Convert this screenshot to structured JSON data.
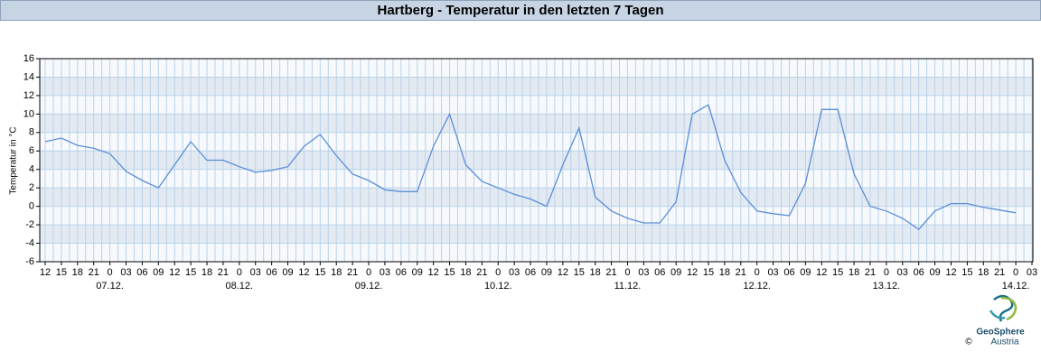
{
  "chart_data": {
    "type": "line",
    "title": "Hartberg - Temperatur in den letzten 7 Tagen",
    "y_label": "Temperatur in °C",
    "categories": [
      "12",
      "15",
      "18",
      "21",
      "0",
      "03",
      "06",
      "09",
      "12",
      "15",
      "18",
      "21",
      "0",
      "03",
      "06",
      "09",
      "12",
      "15",
      "18",
      "21",
      "0",
      "03",
      "06",
      "09",
      "12",
      "15",
      "18",
      "21",
      "0",
      "03",
      "06",
      "09",
      "12",
      "15",
      "18",
      "21",
      "0",
      "03",
      "06",
      "09",
      "12",
      "15",
      "18",
      "21",
      "0",
      "03",
      "06",
      "09",
      "12",
      "15",
      "18",
      "21",
      "0",
      "03",
      "06",
      "09",
      "12",
      "15",
      "18",
      "21",
      "0",
      "03"
    ],
    "dates": [
      "07.12.",
      "08.12.",
      "09.12.",
      "10.12.",
      "11.12.",
      "12.12.",
      "13.12.",
      "14.12."
    ],
    "values": [
      7.0,
      7.4,
      6.6,
      6.3,
      5.7,
      3.8,
      2.8,
      2.0,
      4.5,
      7.0,
      5.0,
      5.0,
      4.3,
      3.7,
      3.9,
      4.3,
      6.5,
      7.8,
      5.5,
      3.5,
      2.8,
      1.8,
      1.6,
      1.6,
      6.5,
      10.0,
      4.5,
      2.7,
      2.0,
      1.3,
      0.8,
      0.0,
      4.5,
      8.5,
      1.0,
      -0.5,
      -1.3,
      -1.8,
      -1.8,
      0.5,
      10.0,
      11.0,
      5.0,
      1.5,
      -0.5,
      -0.8,
      -1.0,
      2.5,
      10.5,
      10.5,
      3.5,
      0.0,
      -0.5,
      -1.3,
      -2.5,
      -0.5,
      0.3,
      0.3,
      -0.1,
      -0.4,
      -0.7,
      null
    ],
    "color": "#5b8ed8",
    "ylim": [
      -6,
      16
    ],
    "yticks": [
      -6,
      -4,
      -2,
      0,
      2,
      4,
      6,
      8,
      10,
      12,
      14,
      16
    ],
    "grid": true,
    "logo": {
      "name": "GeoSphere",
      "sub": "Austria",
      "copyright": "©"
    }
  }
}
